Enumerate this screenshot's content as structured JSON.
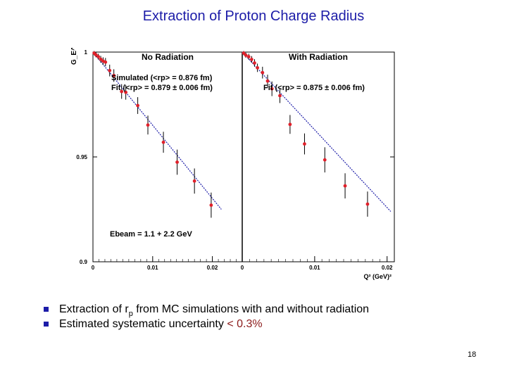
{
  "slide": {
    "title": "Extraction of Proton Charge Radius",
    "page_number": "18",
    "bullets": [
      {
        "prefix": "Extraction of r",
        "subscript": "p",
        "suffix": " from MC simulations with and without radiation",
        "highlight": ""
      },
      {
        "prefix": "Estimated systematic uncertainty ",
        "subscript": "",
        "suffix": "",
        "highlight": " < 0.3%"
      }
    ]
  },
  "colors": {
    "title": "#1c1ca8",
    "bullet_marker": "#1c1ca8",
    "highlight": "#8b1a1a",
    "data_point": "#e0202a",
    "fit_line": "#1c1ca8",
    "error_bar": "#000000"
  },
  "chart_data": {
    "type": "scatter",
    "ylabel": "G_E^p",
    "xlabel": "Q² (GeV)²",
    "ylim": [
      0.9,
      1.0
    ],
    "yticks": [
      {
        "value": 1,
        "label": "1"
      },
      {
        "value": 0.95,
        "label": "0.95"
      },
      {
        "value": 0.9,
        "label": "0.9"
      }
    ],
    "panels": [
      {
        "title": "No Radiation",
        "xlim": [
          0,
          0.025
        ],
        "xticks": [
          {
            "value": 0,
            "label": "0"
          },
          {
            "value": 0.01,
            "label": "0.01"
          },
          {
            "value": 0.02,
            "label": "0.02"
          }
        ],
        "annotations": [
          "Simulated (<rp> = 0.876 fm)",
          "Fit (<rp> = 0.879 ± 0.006 fm)",
          "Ebeam = 1.1 + 2.2 GeV"
        ],
        "fit_line": {
          "x": [
            0,
            0.0215
          ],
          "y": [
            1.0,
            0.925
          ]
        },
        "points": [
          {
            "x": 0.0002,
            "y": 0.9995,
            "err": 0.001
          },
          {
            "x": 0.0005,
            "y": 0.9987,
            "err": 0.0012
          },
          {
            "x": 0.0009,
            "y": 0.9978,
            "err": 0.0014
          },
          {
            "x": 0.0013,
            "y": 0.9966,
            "err": 0.0016
          },
          {
            "x": 0.0017,
            "y": 0.9957,
            "err": 0.0018
          },
          {
            "x": 0.0021,
            "y": 0.9952,
            "err": 0.002
          },
          {
            "x": 0.0028,
            "y": 0.9912,
            "err": 0.0028
          },
          {
            "x": 0.0035,
            "y": 0.9888,
            "err": 0.003
          },
          {
            "x": 0.0048,
            "y": 0.9812,
            "err": 0.0035
          },
          {
            "x": 0.0055,
            "y": 0.9808,
            "err": 0.0035
          },
          {
            "x": 0.0075,
            "y": 0.9745,
            "err": 0.004
          },
          {
            "x": 0.0092,
            "y": 0.9652,
            "err": 0.0045
          },
          {
            "x": 0.0118,
            "y": 0.957,
            "err": 0.005
          },
          {
            "x": 0.0141,
            "y": 0.9475,
            "err": 0.006
          },
          {
            "x": 0.017,
            "y": 0.9385,
            "err": 0.006
          },
          {
            "x": 0.0198,
            "y": 0.927,
            "err": 0.006
          }
        ]
      },
      {
        "title": "With Radiation",
        "xlim": [
          0,
          0.021
        ],
        "xticks": [
          {
            "value": 0,
            "label": "0"
          },
          {
            "value": 0.01,
            "label": "0.01"
          },
          {
            "value": 0.02,
            "label": "0.02"
          }
        ],
        "annotations": [
          "Fit (<rp> = 0.875 ± 0.006 fm)"
        ],
        "fit_line": {
          "x": [
            0,
            0.0205
          ],
          "y": [
            1.0,
            0.924
          ]
        },
        "points": [
          {
            "x": 0.0002,
            "y": 0.9995,
            "err": 0.001
          },
          {
            "x": 0.0005,
            "y": 0.9985,
            "err": 0.0012
          },
          {
            "x": 0.0009,
            "y": 0.9978,
            "err": 0.0014
          },
          {
            "x": 0.0013,
            "y": 0.9965,
            "err": 0.0016
          },
          {
            "x": 0.0017,
            "y": 0.9948,
            "err": 0.0018
          },
          {
            "x": 0.0021,
            "y": 0.9925,
            "err": 0.002
          },
          {
            "x": 0.0028,
            "y": 0.9902,
            "err": 0.0028
          },
          {
            "x": 0.0035,
            "y": 0.9862,
            "err": 0.003
          },
          {
            "x": 0.0041,
            "y": 0.9825,
            "err": 0.0035
          },
          {
            "x": 0.0052,
            "y": 0.9792,
            "err": 0.0035
          },
          {
            "x": 0.0066,
            "y": 0.9655,
            "err": 0.0045
          },
          {
            "x": 0.0086,
            "y": 0.9562,
            "err": 0.005
          },
          {
            "x": 0.0114,
            "y": 0.9486,
            "err": 0.006
          },
          {
            "x": 0.0142,
            "y": 0.9362,
            "err": 0.006
          },
          {
            "x": 0.0173,
            "y": 0.9275,
            "err": 0.006
          }
        ]
      }
    ]
  }
}
